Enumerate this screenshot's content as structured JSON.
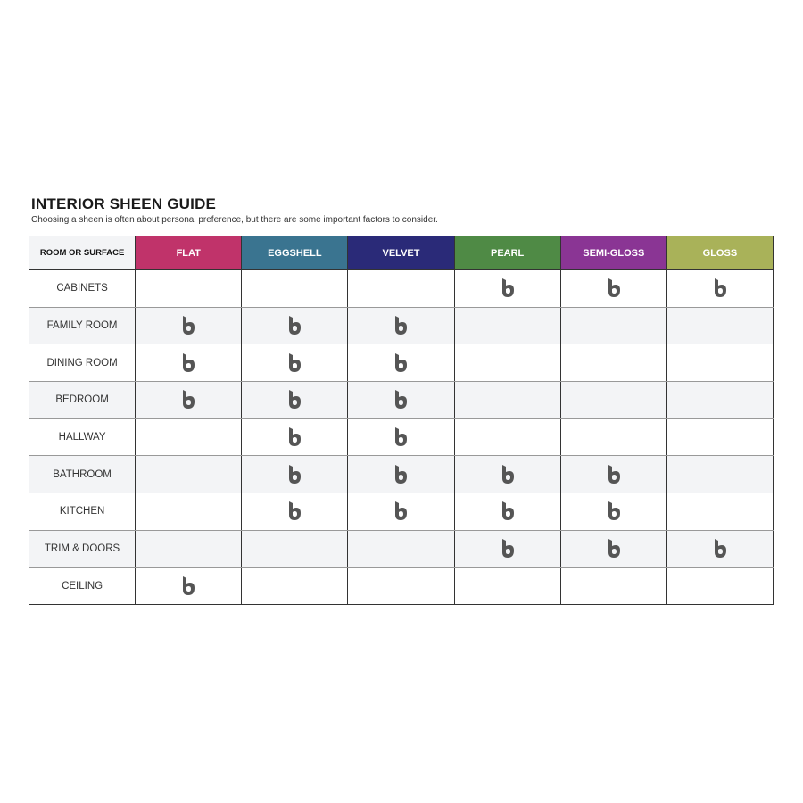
{
  "title": "INTERIOR SHEEN GUIDE",
  "subtitle": "Choosing a sheen is often about personal preference, but there are some important factors to consider.",
  "header_first": "ROOM OR SURFACE",
  "sheens": [
    {
      "label": "FLAT",
      "color": "#c0336a"
    },
    {
      "label": "EGGSHELL",
      "color": "#3a7490"
    },
    {
      "label": "VELVET",
      "color": "#2a2a78"
    },
    {
      "label": "PEARL",
      "color": "#4f8a45"
    },
    {
      "label": "SEMI-GLOSS",
      "color": "#8a3594"
    },
    {
      "label": "GLOSS",
      "color": "#a9b259"
    }
  ],
  "mark_icon": "brand-b-logo-icon",
  "mark_color": "#555555",
  "rows": [
    {
      "label": "CABINETS",
      "marks": [
        false,
        false,
        false,
        true,
        true,
        true
      ]
    },
    {
      "label": "FAMILY ROOM",
      "marks": [
        true,
        true,
        true,
        false,
        false,
        false
      ]
    },
    {
      "label": "DINING ROOM",
      "marks": [
        true,
        true,
        true,
        false,
        false,
        false
      ]
    },
    {
      "label": "BEDROOM",
      "marks": [
        true,
        true,
        true,
        false,
        false,
        false
      ]
    },
    {
      "label": "HALLWAY",
      "marks": [
        false,
        true,
        true,
        false,
        false,
        false
      ]
    },
    {
      "label": "BATHROOM",
      "marks": [
        false,
        true,
        true,
        true,
        true,
        false
      ]
    },
    {
      "label": "KITCHEN",
      "marks": [
        false,
        true,
        true,
        true,
        true,
        false
      ]
    },
    {
      "label": "TRIM & DOORS",
      "marks": [
        false,
        false,
        false,
        true,
        true,
        true
      ]
    },
    {
      "label": "CEILING",
      "marks": [
        true,
        false,
        false,
        false,
        false,
        false
      ]
    }
  ]
}
